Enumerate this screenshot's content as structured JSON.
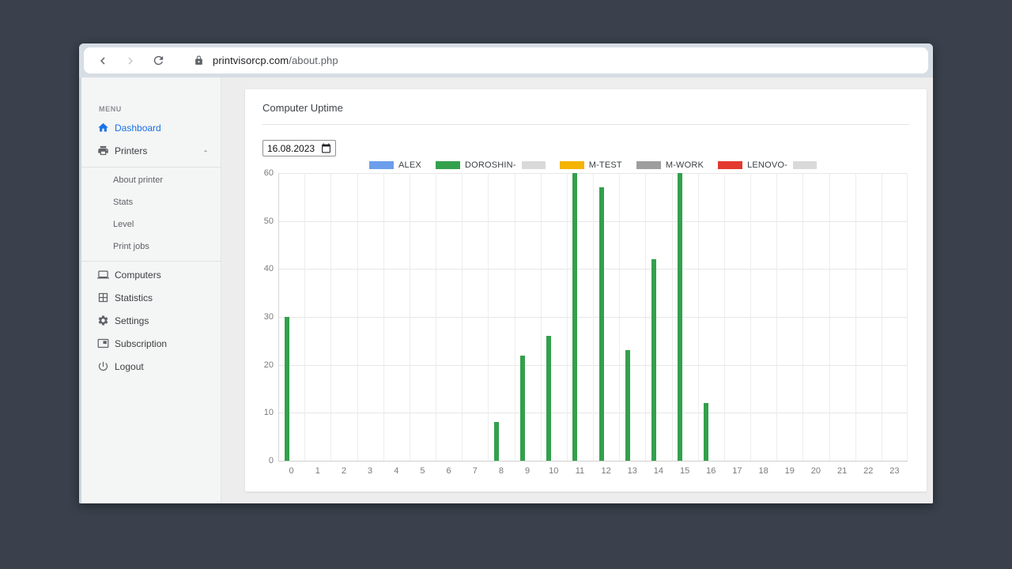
{
  "theme": {
    "accent": "#1a73e8"
  },
  "browser": {
    "url_domain": "printvisorcp.com",
    "url_path": "/about.php"
  },
  "sidebar": {
    "menu_label": "MENU",
    "dashboard": "Dashboard",
    "printers": "Printers",
    "printers_submenu": [
      "About printer",
      "Stats",
      "Level",
      "Print jobs"
    ],
    "computers": "Computers",
    "statistics": "Statistics",
    "settings": "Settings",
    "subscription": "Subscription",
    "logout": "Logout"
  },
  "main": {
    "title": "Computer Uptime",
    "date_value": "16.08.2023"
  },
  "chart_data": {
    "type": "bar",
    "title": "Computer Uptime",
    "categories": [
      "0",
      "1",
      "2",
      "3",
      "4",
      "5",
      "6",
      "7",
      "8",
      "9",
      "10",
      "11",
      "12",
      "13",
      "14",
      "15",
      "16",
      "17",
      "18",
      "19",
      "20",
      "21",
      "22",
      "23"
    ],
    "series": [
      {
        "name": "ALEX",
        "color": "#6d9eeb",
        "redacted": false,
        "values": [
          0,
          0,
          0,
          0,
          0,
          0,
          0,
          0,
          0,
          0,
          0,
          0,
          0,
          0,
          0,
          0,
          0,
          0,
          0,
          0,
          0,
          0,
          0,
          0
        ]
      },
      {
        "name": "DOROSHIN-",
        "color": "#33a04c",
        "redacted": true,
        "values": [
          30,
          0,
          0,
          0,
          0,
          0,
          0,
          0,
          8,
          22,
          26,
          60,
          57,
          23,
          42,
          60,
          12,
          0,
          0,
          0,
          0,
          0,
          0,
          0
        ]
      },
      {
        "name": "M-TEST",
        "color": "#f5b400",
        "redacted": false,
        "values": [
          0,
          0,
          0,
          0,
          0,
          0,
          0,
          0,
          0,
          0,
          0,
          0,
          0,
          0,
          0,
          0,
          0,
          0,
          0,
          0,
          0,
          0,
          0,
          0
        ]
      },
      {
        "name": "M-WORK",
        "color": "#9e9e9e",
        "redacted": false,
        "values": [
          0,
          0,
          0,
          0,
          0,
          0,
          0,
          0,
          0,
          0,
          0,
          0,
          0,
          0,
          0,
          0,
          0,
          0,
          0,
          0,
          0,
          0,
          0,
          0
        ]
      },
      {
        "name": "LENOVO-",
        "color": "#e3392e",
        "redacted": true,
        "values": [
          0,
          0,
          0,
          0,
          0,
          0,
          0,
          0,
          0,
          0,
          0,
          0,
          0,
          0,
          0,
          0,
          0,
          0,
          0,
          0,
          0,
          0,
          0,
          0
        ]
      }
    ],
    "ylim": [
      0,
      60
    ],
    "yticks": [
      0,
      10,
      20,
      30,
      40,
      50,
      60
    ],
    "xlabel": "",
    "ylabel": "",
    "grid": true,
    "legend_position": "top"
  }
}
